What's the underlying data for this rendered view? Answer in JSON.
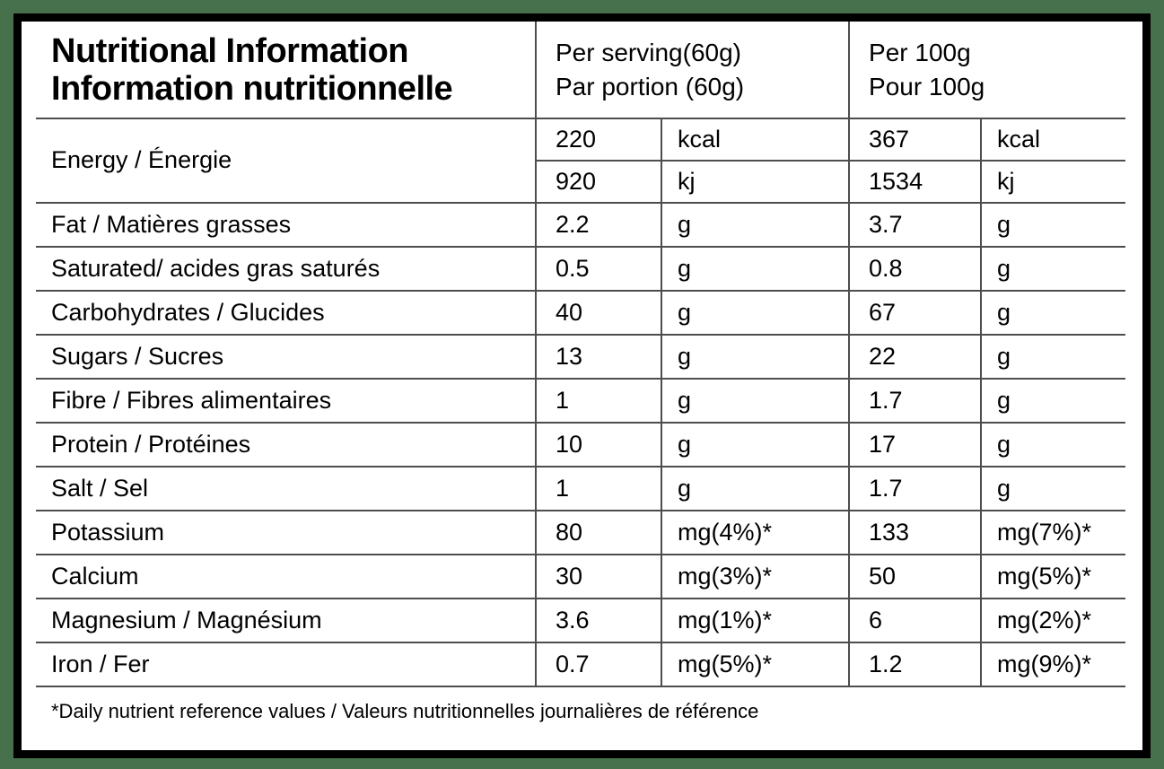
{
  "colors": {
    "page_background": "#47714d",
    "card_background": "#ffffff",
    "card_border": "#000000",
    "grid_line": "#4d4d4d",
    "text": "#000000"
  },
  "table": {
    "title_en": "Nutritional Information",
    "title_fr": "Information nutritionnelle",
    "col_headers": {
      "per_serving": {
        "line1": "Per serving(60g)",
        "line2": "Par portion (60g)"
      },
      "per_100g": {
        "line1": "Per 100g",
        "line2": "Pour 100g"
      }
    },
    "energy": {
      "name": "Energy / Énergie",
      "rows": [
        {
          "serving_value": "220",
          "serving_unit": "kcal",
          "per100_value": "367",
          "per100_unit": "kcal"
        },
        {
          "serving_value": "920",
          "serving_unit": "kj",
          "per100_value": "1534",
          "per100_unit": "kj"
        }
      ]
    },
    "nutrients": [
      {
        "name": "Fat / Matières grasses",
        "serving_value": "2.2",
        "serving_unit": "g",
        "per100_value": "3.7",
        "per100_unit": "g"
      },
      {
        "name": "Saturated/ acides gras saturés",
        "serving_value": "0.5",
        "serving_unit": "g",
        "per100_value": "0.8",
        "per100_unit": "g"
      },
      {
        "name": "Carbohydrates / Glucides",
        "serving_value": "40",
        "serving_unit": "g",
        "per100_value": "67",
        "per100_unit": "g"
      },
      {
        "name": "Sugars / Sucres",
        "serving_value": "13",
        "serving_unit": "g",
        "per100_value": "22",
        "per100_unit": "g"
      },
      {
        "name": "Fibre / Fibres alimentaires",
        "serving_value": "1",
        "serving_unit": "g",
        "per100_value": "1.7",
        "per100_unit": "g"
      },
      {
        "name": "Protein / Protéines",
        "serving_value": "10",
        "serving_unit": "g",
        "per100_value": "17",
        "per100_unit": "g"
      },
      {
        "name": "Salt / Sel",
        "serving_value": "1",
        "serving_unit": "g",
        "per100_value": "1.7",
        "per100_unit": "g"
      },
      {
        "name": "Potassium",
        "serving_value": "80",
        "serving_unit": "mg(4%)*",
        "per100_value": "133",
        "per100_unit": "mg(7%)*"
      },
      {
        "name": "Calcium",
        "serving_value": "30",
        "serving_unit": "mg(3%)*",
        "per100_value": "50",
        "per100_unit": "mg(5%)*"
      },
      {
        "name": "Magnesium / Magnésium",
        "serving_value": "3.6",
        "serving_unit": "mg(1%)*",
        "per100_value": "6",
        "per100_unit": "mg(2%)*"
      },
      {
        "name": "Iron / Fer",
        "serving_value": "0.7",
        "serving_unit": "mg(5%)*",
        "per100_value": "1.2",
        "per100_unit": "mg(9%)*"
      }
    ],
    "footnote": "*Daily nutrient reference values / Valeurs nutritionnelles journalières de référence"
  }
}
